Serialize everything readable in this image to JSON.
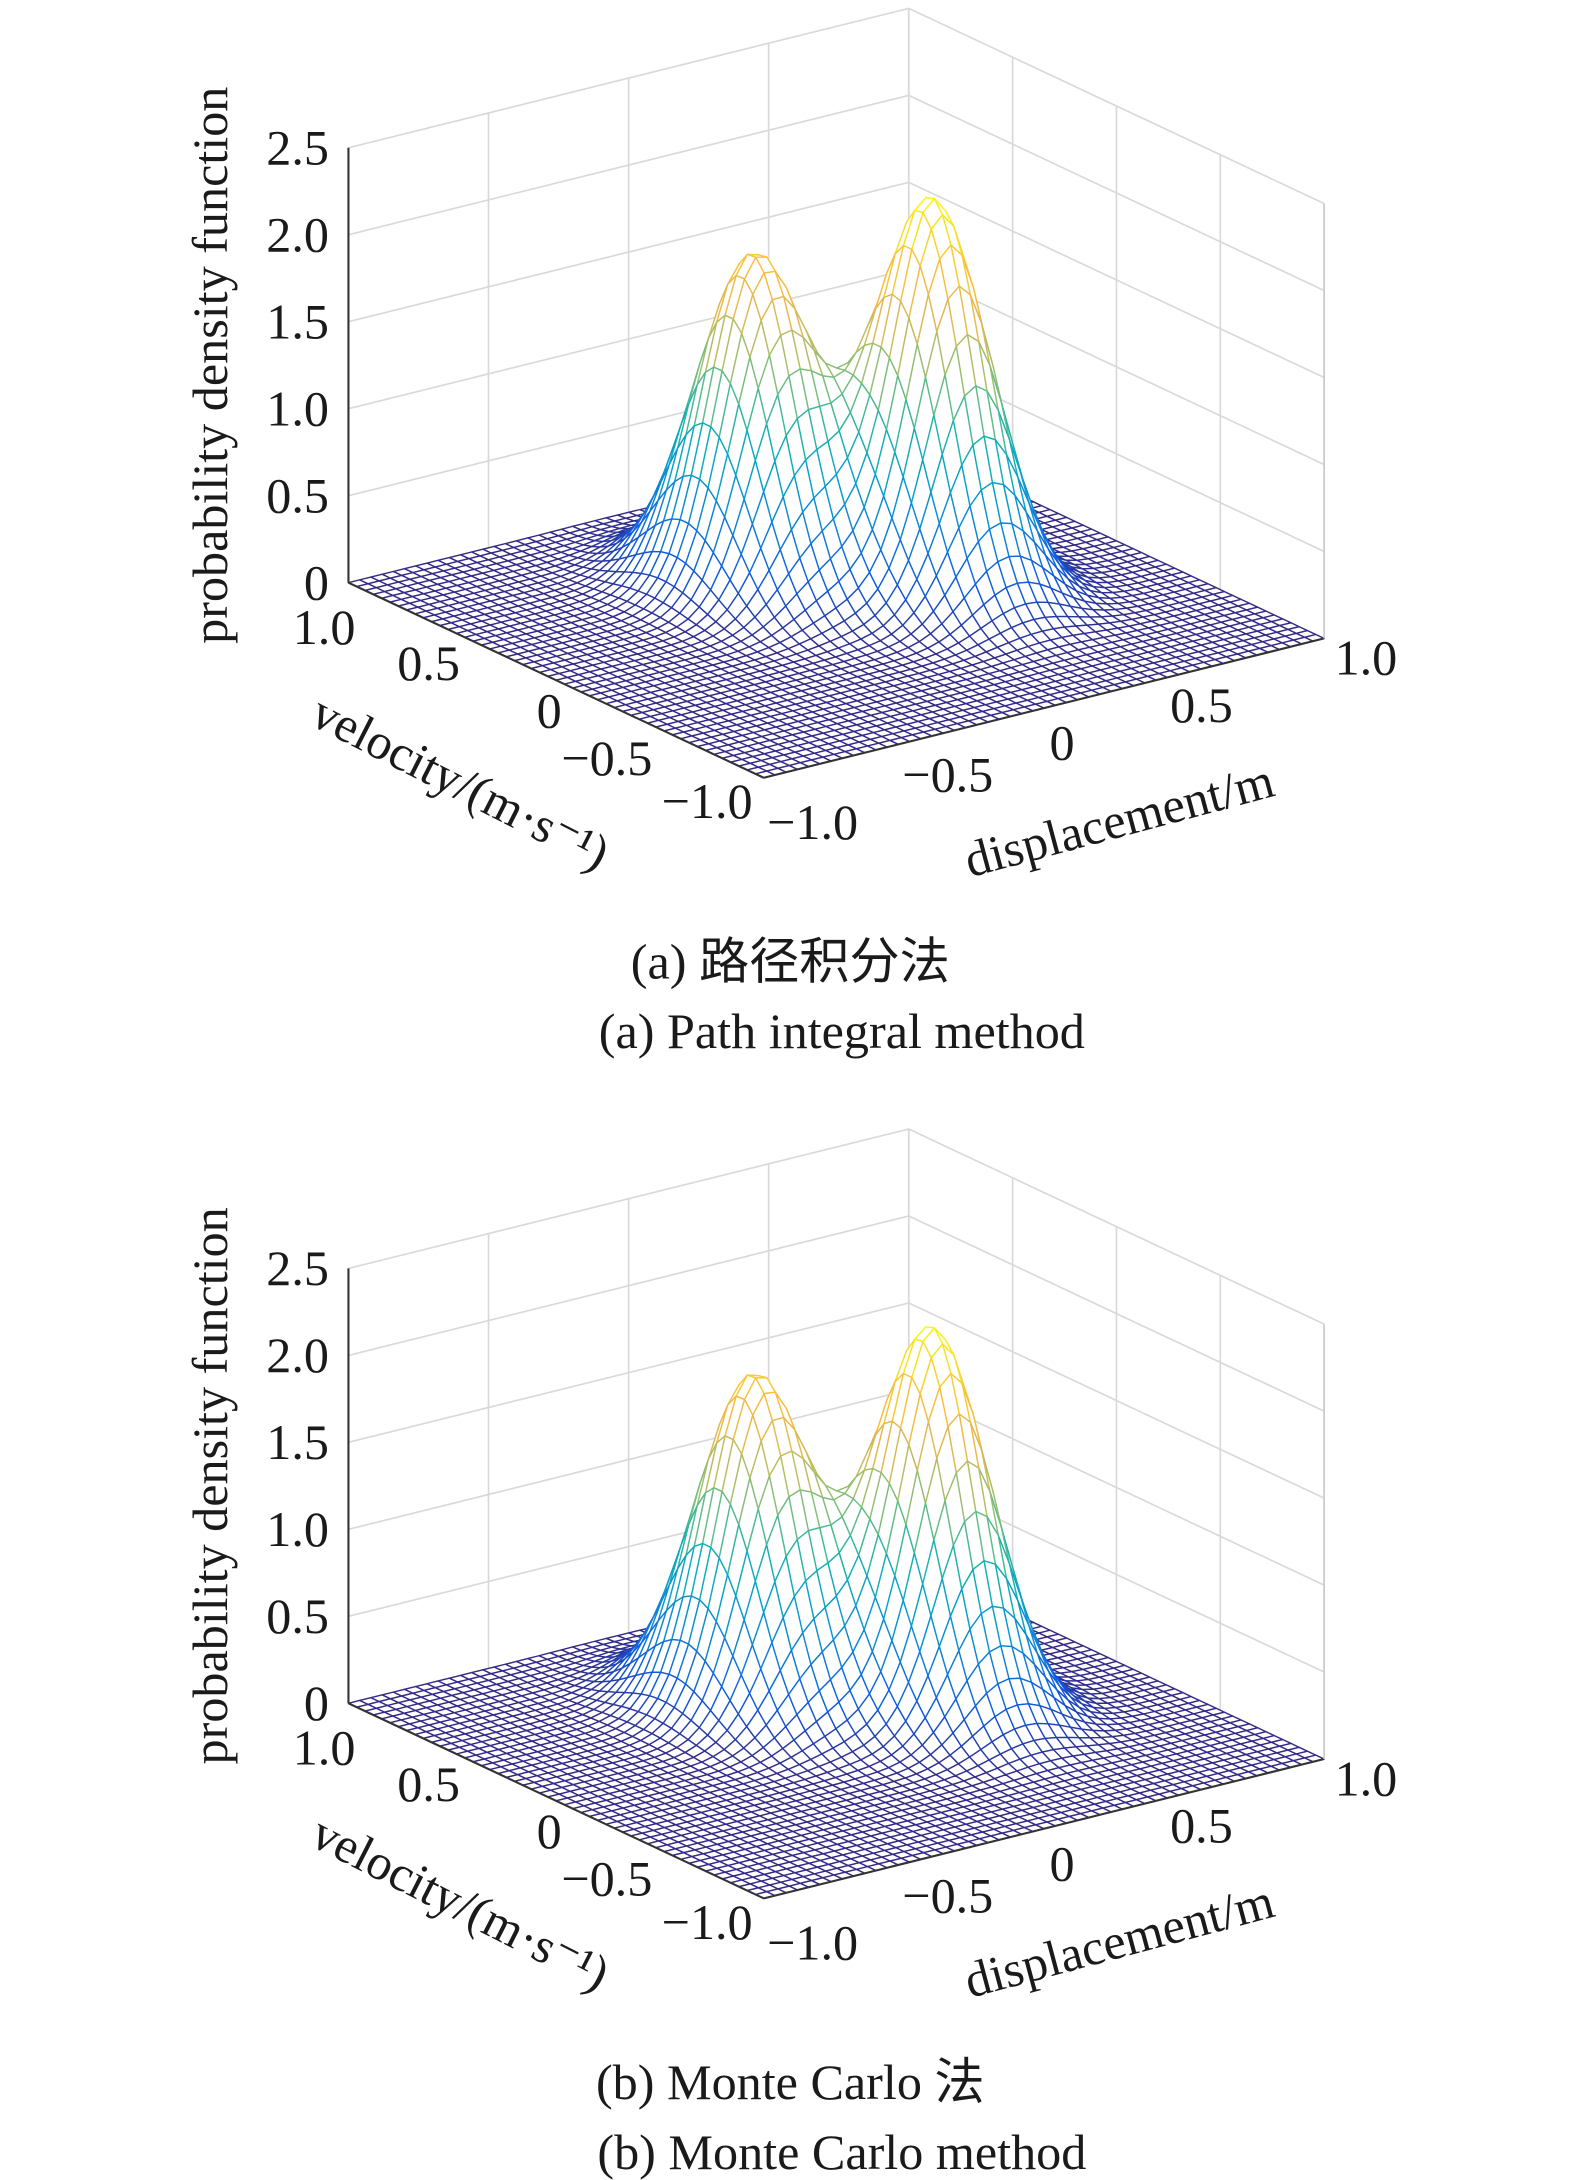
{
  "chart_data": [
    {
      "type": "surface",
      "xlabel": "displacement/m",
      "ylabel": "velocity/(m·s⁻¹)",
      "zlabel": "probability density function",
      "xlim": [
        -1.0,
        1.0
      ],
      "ylim": [
        -1.0,
        1.0
      ],
      "zlim": [
        0,
        2.5
      ],
      "xticks": [
        "−1.0",
        "−0.5",
        "0",
        "0.5",
        "1.0"
      ],
      "yticks": [
        "1.0",
        "0.5",
        "0",
        "−0.5",
        "−1.0"
      ],
      "zticks": [
        "0",
        "0.5",
        "1.0",
        "1.5",
        "2.0",
        "2.5"
      ],
      "grid": true,
      "colormap": "parula",
      "peaks": [
        {
          "x": -0.07,
          "y": 0.3,
          "z": 1.9
        },
        {
          "x": 0.32,
          "y": -0.03,
          "z": 2.25
        }
      ],
      "caption_cn": "(a) 路径积分法",
      "caption_en": "(a) Path integral method"
    },
    {
      "type": "surface",
      "xlabel": "displacement/m",
      "ylabel": "velocity/(m·s⁻¹)",
      "zlabel": "probability density function",
      "xlim": [
        -1.0,
        1.0
      ],
      "ylim": [
        -1.0,
        1.0
      ],
      "zlim": [
        0,
        2.5
      ],
      "xticks": [
        "−1.0",
        "−0.5",
        "0",
        "0.5",
        "1.0"
      ],
      "yticks": [
        "1.0",
        "0.5",
        "0",
        "−0.5",
        "−1.0"
      ],
      "zticks": [
        "0",
        "0.5",
        "1.0",
        "1.5",
        "2.0",
        "2.5"
      ],
      "grid": true,
      "colormap": "parula",
      "peaks": [
        {
          "x": -0.07,
          "y": 0.3,
          "z": 1.9
        },
        {
          "x": 0.32,
          "y": -0.03,
          "z": 2.2
        }
      ],
      "caption_cn": "(b) Monte Carlo 法",
      "caption_en": "(b) Monte Carlo method"
    }
  ]
}
